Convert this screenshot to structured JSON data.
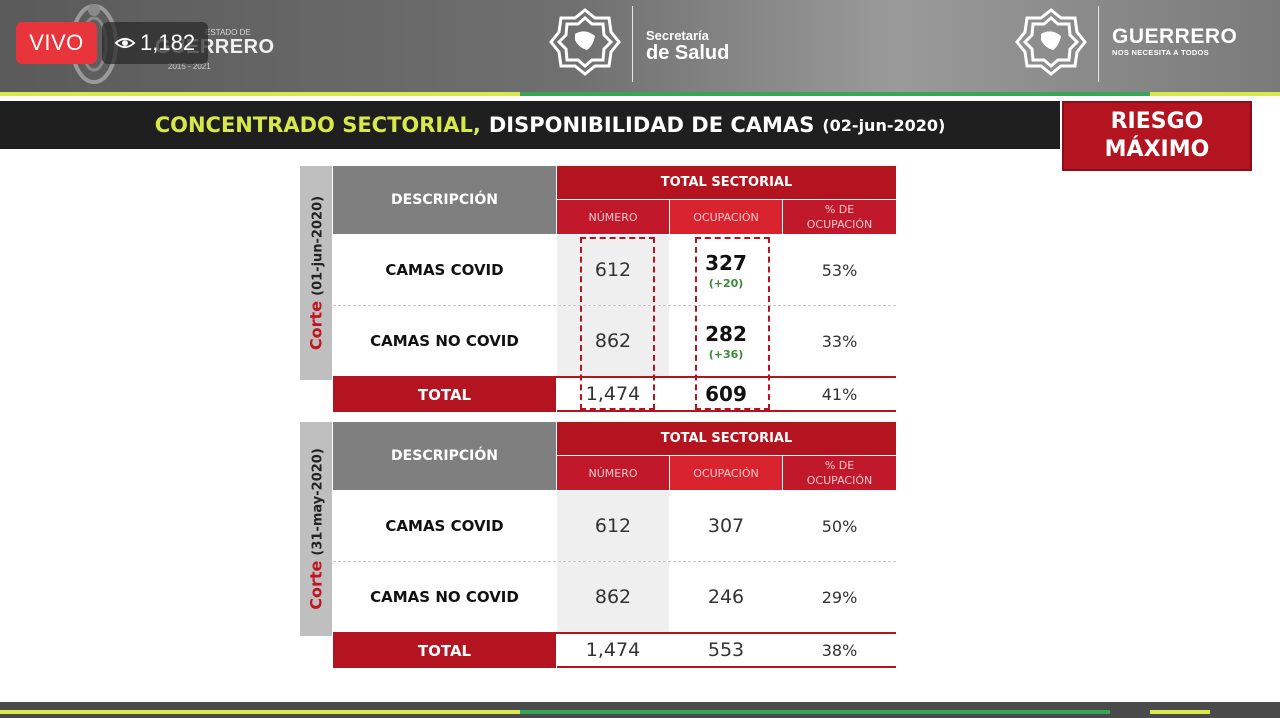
{
  "live": {
    "label": "VIVO",
    "viewers": "1,182"
  },
  "header": {
    "gob_small": "ESTADO DE",
    "gob_word": "GUERRERO",
    "gob_years": "2015 - 2021",
    "salud_line1": "Secretaría",
    "salud_line2": "de Salud",
    "gro_name": "GUERRERO",
    "gro_tagline": "NOS NECESITA A TODOS",
    "colors": {
      "accent_yellow": "#d7e94a",
      "accent_green": "#3aa655",
      "brand_red": "#b3141f"
    }
  },
  "title": {
    "accent": "CONCENTRADO SECTORIAL,",
    "main": "DISPONIBILIDAD DE CAMAS",
    "date": "(02-jun-2020)"
  },
  "risk": {
    "line1": "RIESGO",
    "line2": "MÁXIMO"
  },
  "tables": [
    {
      "side_corte": "Corte",
      "side_date": "(01-jun-2020)",
      "headers": {
        "desc": "DESCRIPCIÓN",
        "total": "TOTAL SECTORIAL",
        "numero": "NÚMERO",
        "ocupacion": "OCUPACIÓN",
        "pct": "% DE OCUPACIÓN"
      },
      "rows": [
        {
          "desc": "CAMAS COVID",
          "numero": "612",
          "ocupacion": "327",
          "delta": "(+20)",
          "pct": "53%"
        },
        {
          "desc": "CAMAS NO COVID",
          "numero": "862",
          "ocupacion": "282",
          "delta": "(+36)",
          "pct": "33%"
        }
      ],
      "total": {
        "label": "TOTAL",
        "numero": "1,474",
        "ocupacion": "609",
        "pct": "41%"
      }
    },
    {
      "side_corte": "Corte",
      "side_date": "(31-may-2020)",
      "headers": {
        "desc": "DESCRIPCIÓN",
        "total": "TOTAL SECTORIAL",
        "numero": "NÚMERO",
        "ocupacion": "OCUPACIÓN",
        "pct": "% DE OCUPACIÓN"
      },
      "rows": [
        {
          "desc": "CAMAS COVID",
          "numero": "612",
          "ocupacion": "307",
          "pct": "50%"
        },
        {
          "desc": "CAMAS NO COVID",
          "numero": "862",
          "ocupacion": "246",
          "pct": "29%"
        }
      ],
      "total": {
        "label": "TOTAL",
        "numero": "1,474",
        "ocupacion": "553",
        "pct": "38%"
      }
    }
  ]
}
